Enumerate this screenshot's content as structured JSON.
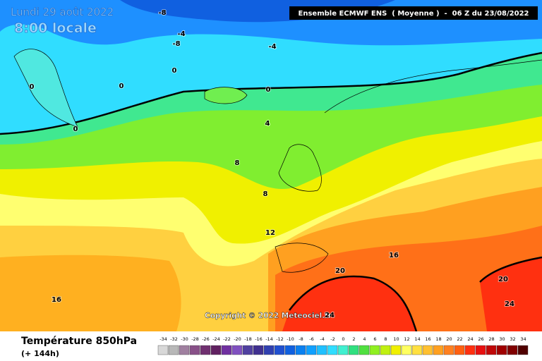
{
  "header": {
    "date": "Lundi 29 août 2022",
    "time": "8:00 locale",
    "model": "Ensemble ECMWF ENS  ( Moyenne )  -  06 Z du 23/08/2022"
  },
  "map": {
    "contour_labels": [
      -8,
      -4,
      -8,
      -4,
      0,
      0,
      0,
      0,
      0,
      4,
      8,
      8,
      12,
      16,
      16,
      20,
      20,
      24,
      24
    ],
    "copyright": "Copyright © 2022 Meteociel.fr"
  },
  "footer": {
    "title": "Température 850hPa",
    "lead": "(+ 144h)"
  },
  "colorbar": {
    "ticks": [
      -34,
      -32,
      -30,
      -28,
      -26,
      -24,
      -22,
      -20,
      -18,
      -16,
      -14,
      -12,
      -10,
      -8,
      -6,
      -4,
      -2,
      0,
      2,
      4,
      6,
      8,
      10,
      12,
      14,
      16,
      18,
      20,
      22,
      24,
      26,
      28,
      30,
      32,
      34
    ],
    "colors": [
      "#d8d8d8",
      "#b8b8b8",
      "#a080a0",
      "#885088",
      "#703070",
      "#602060",
      "#7030a0",
      "#8050c0",
      "#5040a0",
      "#403090",
      "#3040b0",
      "#2050d0",
      "#1060e0",
      "#0a80f0",
      "#10a0ff",
      "#20c0ff",
      "#30ddff",
      "#40f0d0",
      "#30e080",
      "#50e040",
      "#90f020",
      "#c0f010",
      "#f0f000",
      "#ffff60",
      "#ffe040",
      "#ffc030",
      "#ffa020",
      "#ff8020",
      "#ff6010",
      "#ff3010",
      "#e81010",
      "#c00808",
      "#a00000",
      "#800000",
      "#500000"
    ]
  }
}
